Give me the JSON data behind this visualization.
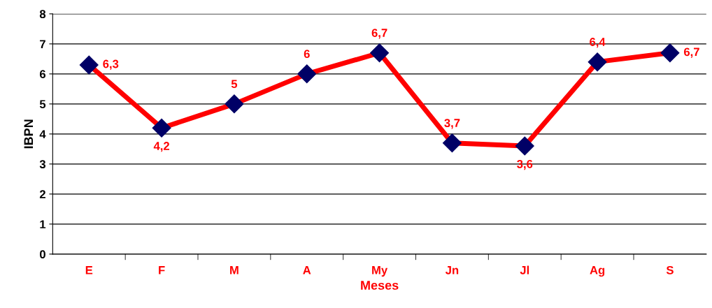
{
  "chart_data": {
    "type": "line",
    "xlabel": "Meses",
    "ylabel": "IBPN",
    "categories": [
      "E",
      "F",
      "M",
      "A",
      "My",
      "Jn",
      "Jl",
      "Ag",
      "S"
    ],
    "series": [
      {
        "color": "#ff0000",
        "values": [
          6.3,
          4.2,
          5,
          6,
          6.7,
          3.7,
          3.6,
          6.4,
          6.7
        ],
        "value_labels": [
          "6,3",
          "4,2",
          "5",
          "6",
          "6,7",
          "3,7",
          "3,6",
          "6,4",
          "6,7"
        ]
      }
    ],
    "ylim": [
      0,
      8
    ],
    "yticks": [
      0,
      1,
      2,
      3,
      4,
      5,
      6,
      7,
      8
    ],
    "grid": "y",
    "marker": "diamond",
    "line_style": "solid",
    "legend": false
  }
}
